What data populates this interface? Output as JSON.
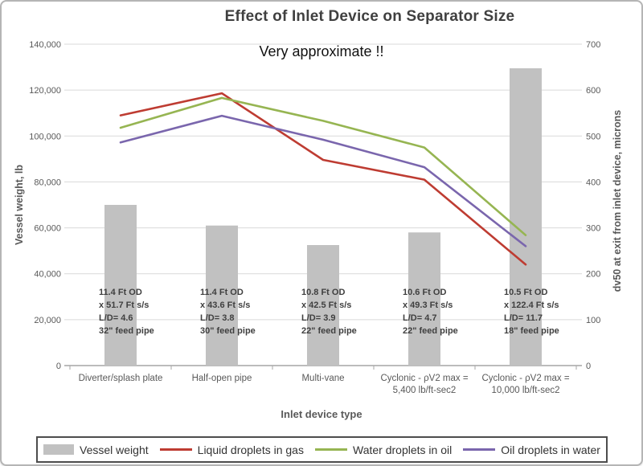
{
  "title": "Effect of Inlet Device on Separator Size",
  "subtitle": "Very approximate !!",
  "colors": {
    "bar": "#c1c1c1",
    "red": "#be3c32",
    "green": "#96b552",
    "purple": "#7a66ad",
    "grid": "#d9d9d9",
    "axis_line": "#a6a6a6",
    "label_text": "#595959"
  },
  "left_axis": {
    "title": "Vessel weight, lb",
    "ticks": [
      "0",
      "20,000",
      "40,000",
      "60,000",
      "80,000",
      "100,000",
      "120,000",
      "140,000"
    ],
    "max": 140000
  },
  "right_axis": {
    "title": "dv50 at exit from inlet device, microns",
    "ticks": [
      "0",
      "100",
      "200",
      "300",
      "400",
      "500",
      "600",
      "700"
    ],
    "max": 700
  },
  "x_axis": {
    "title": "Inlet device type"
  },
  "chart_data": {
    "type": "bar+line",
    "categories": [
      "Diverter/splash plate",
      "Half-open pipe",
      "Multi-vane",
      "Cyclonic - ρV2 max =\n5,400 lb/ft-sec2",
      "Cyclonic - ρV2 max =\n10,000 lb/ft-sec2"
    ],
    "bar_series": {
      "name": "Vessel weight",
      "axis": "left",
      "unit": "lb",
      "values": [
        70000,
        61000,
        52500,
        58000,
        129500
      ]
    },
    "line_series": [
      {
        "name": "Liquid droplets in gas",
        "color_key": "red",
        "axis": "right",
        "unit": "microns",
        "values": [
          545,
          593,
          448,
          405,
          220
        ]
      },
      {
        "name": "Water droplets in oil",
        "color_key": "green",
        "axis": "right",
        "unit": "microns",
        "values": [
          518,
          583,
          533,
          475,
          284
        ]
      },
      {
        "name": "Oil droplets in water",
        "color_key": "purple",
        "axis": "right",
        "unit": "microns",
        "values": [
          486,
          544,
          492,
          432,
          260
        ]
      }
    ],
    "ylim_left": [
      0,
      140000
    ],
    "ylim_right": [
      0,
      700
    ],
    "grid": true,
    "legend_position": "bottom",
    "annotations": [
      {
        "lines": [
          "11.4 Ft OD",
          "x 51.7 Ft s/s",
          "L/D= 4.6",
          "32\" feed pipe"
        ]
      },
      {
        "lines": [
          "11.4 Ft OD",
          "x 43.6 Ft s/s",
          "L/D= 3.8",
          "30\" feed pipe"
        ]
      },
      {
        "lines": [
          "10.8 Ft OD",
          "x 42.5 Ft s/s",
          "L/D= 3.9",
          "22\" feed pipe"
        ]
      },
      {
        "lines": [
          "10.6 Ft OD",
          "x 49.3 Ft s/s",
          "L/D= 4.7",
          "22\" feed pipe"
        ]
      },
      {
        "lines": [
          "10.5 Ft OD",
          "x 122.4 Ft s/s",
          "L/D= 11.7",
          "18\" feed pipe"
        ]
      }
    ]
  }
}
